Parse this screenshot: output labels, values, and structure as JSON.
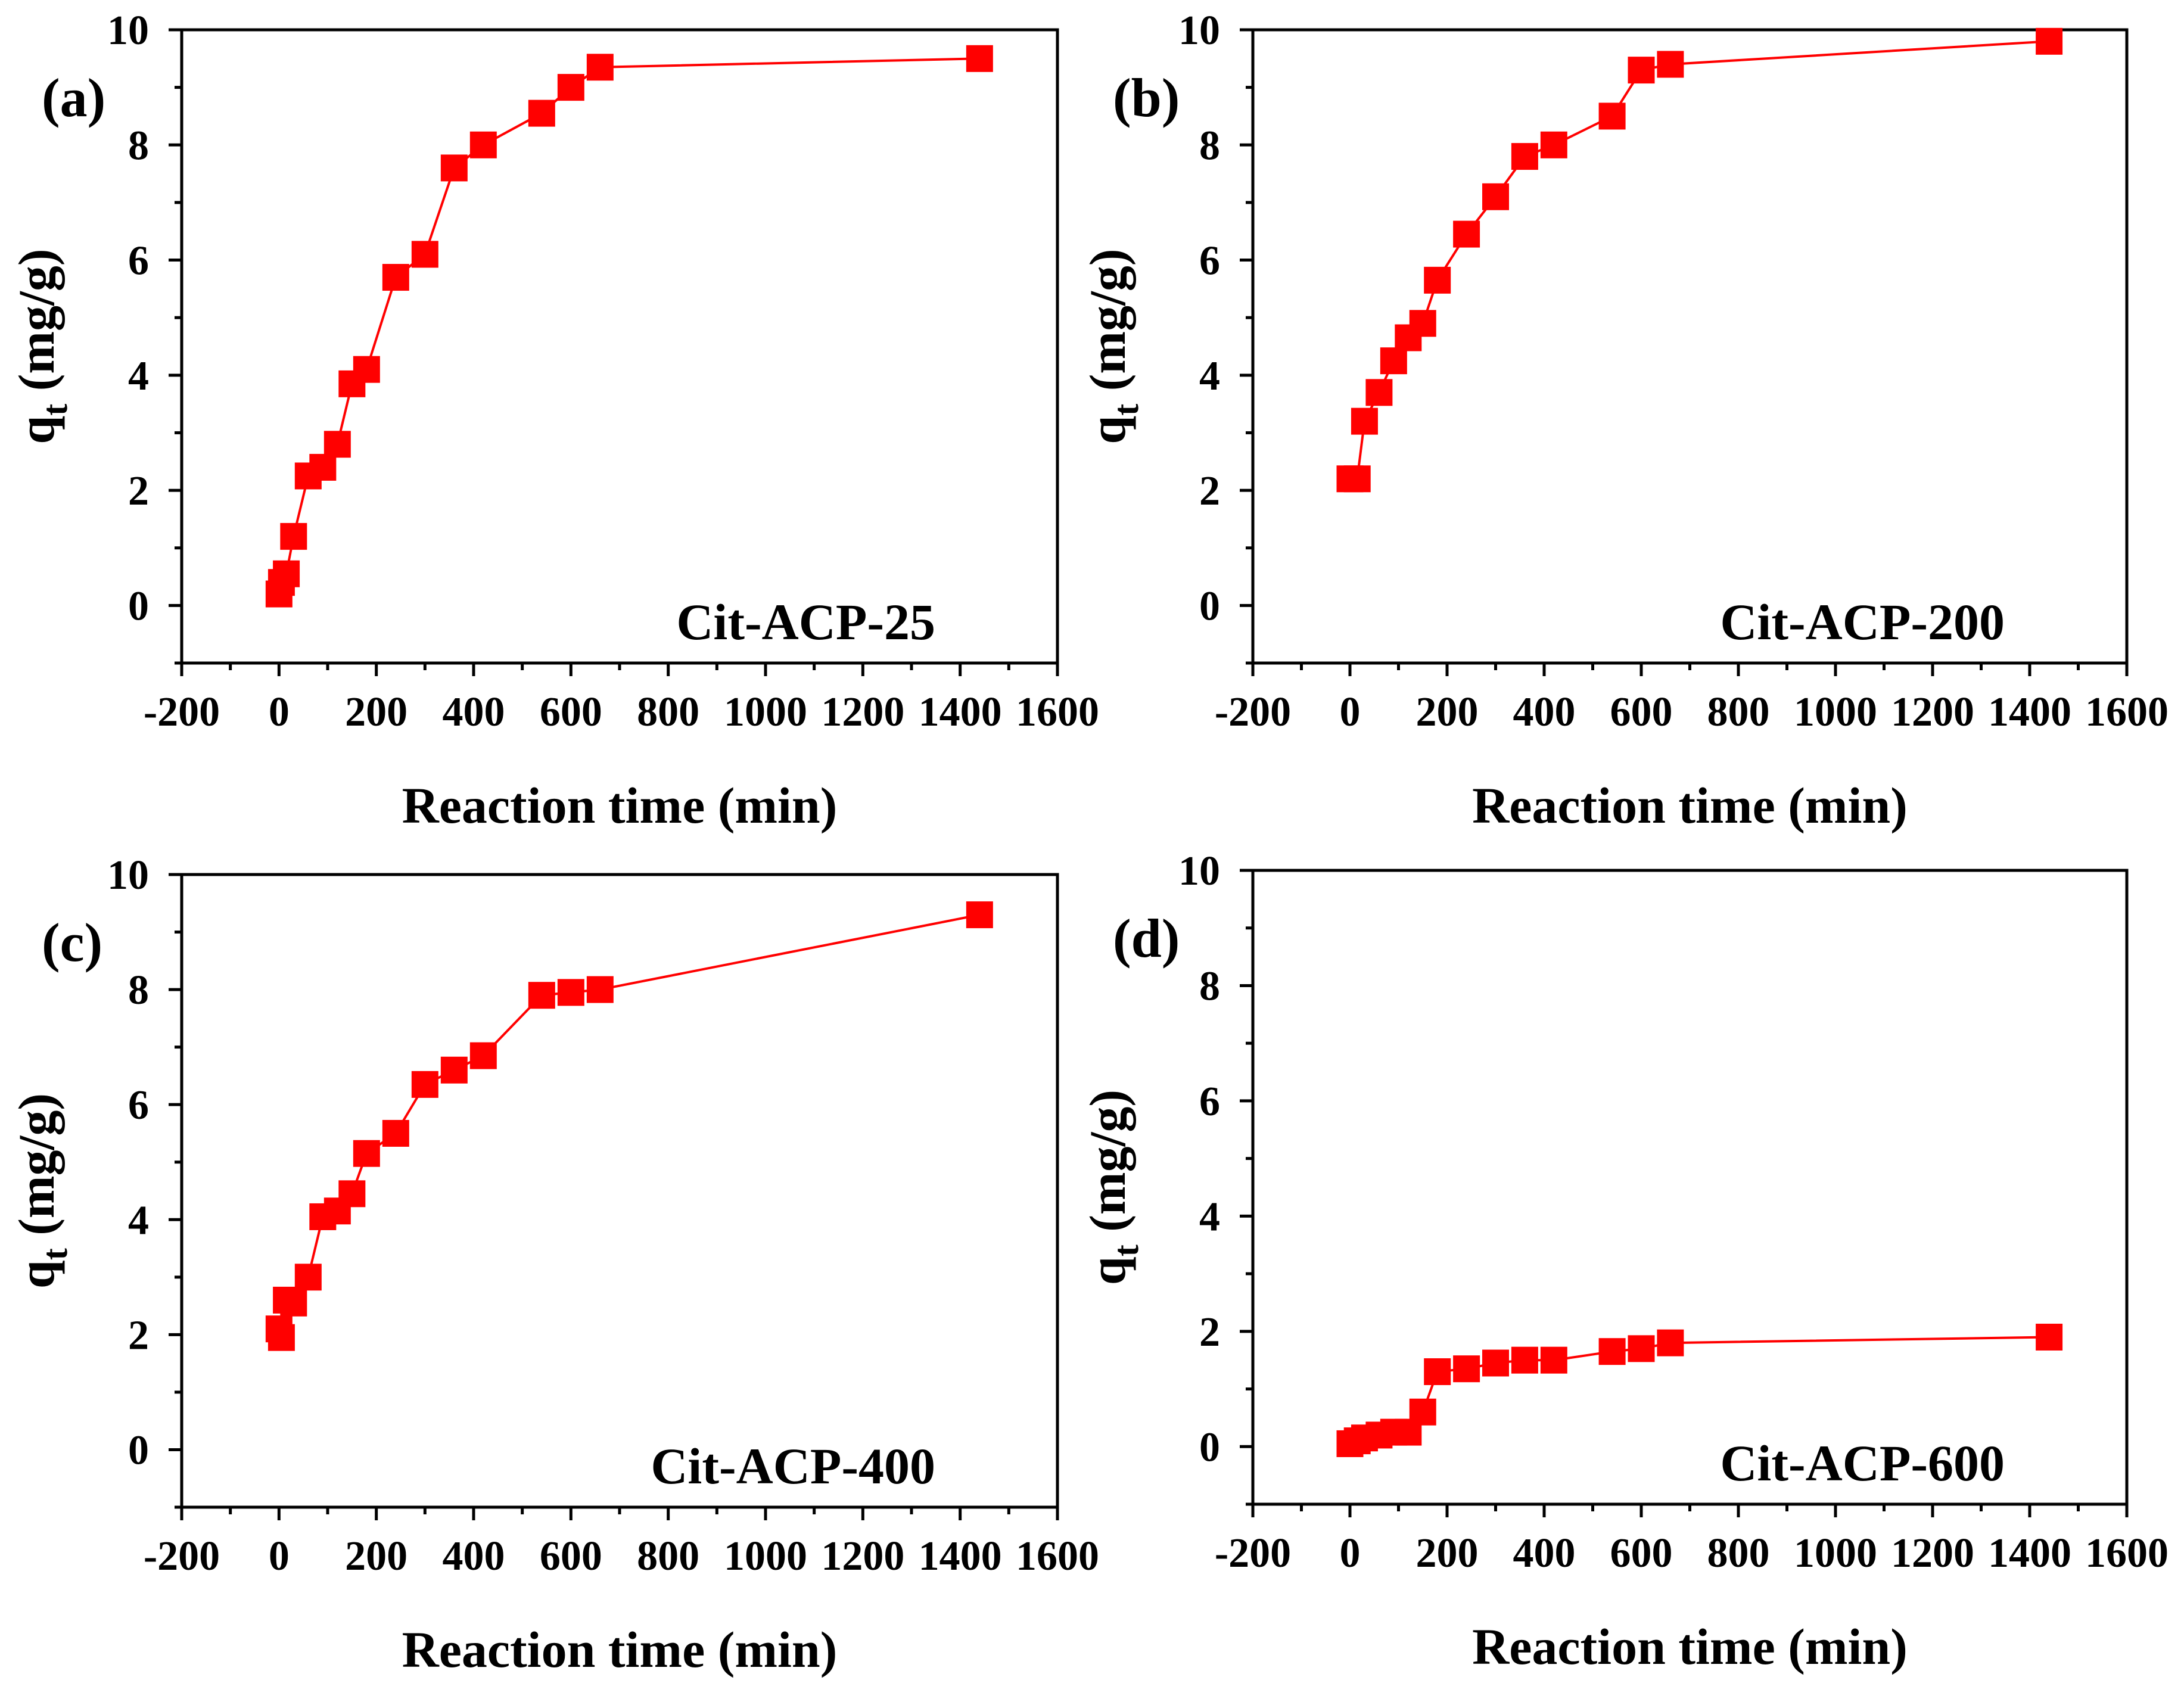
{
  "figure": {
    "x_axis_title": "Reaction time (min)",
    "y_axis_title_main": "q",
    "y_axis_title_sub": "t",
    "y_axis_title_unit": " (mg/g)"
  },
  "chart_data": [
    {
      "type": "line",
      "panel": "(a)",
      "sample": "Cit-ACP-25",
      "xlabel": "Reaction time (min)",
      "ylabel": "qt (mg/g)",
      "xlim": [
        -200,
        1600
      ],
      "ylim": [
        -1,
        10
      ],
      "xticks": [
        -200,
        0,
        200,
        400,
        600,
        800,
        1000,
        1200,
        1400,
        1600
      ],
      "yticks": [
        0,
        2,
        4,
        6,
        8,
        10
      ],
      "series": [
        {
          "name": "Cit-ACP-25",
          "color": "#ff0000",
          "marker": "square",
          "x": [
            0,
            5,
            15,
            30,
            60,
            90,
            120,
            150,
            180,
            240,
            300,
            360,
            420,
            540,
            600,
            660,
            1440
          ],
          "y": [
            0.2,
            0.4,
            0.55,
            1.2,
            2.25,
            2.4,
            2.8,
            3.85,
            4.1,
            5.7,
            6.1,
            7.6,
            8.0,
            8.55,
            9.0,
            9.35,
            9.5
          ]
        }
      ]
    },
    {
      "type": "line",
      "panel": "(b)",
      "sample": "Cit-ACP-200",
      "xlabel": "Reaction time (min)",
      "ylabel": "qt (mg/g)",
      "xlim": [
        -200,
        1600
      ],
      "ylim": [
        -1,
        10
      ],
      "xticks": [
        -200,
        0,
        200,
        400,
        600,
        800,
        1000,
        1200,
        1400,
        1600
      ],
      "yticks": [
        0,
        2,
        4,
        6,
        8,
        10
      ],
      "series": [
        {
          "name": "Cit-ACP-200",
          "color": "#ff0000",
          "marker": "square",
          "x": [
            0,
            15,
            30,
            60,
            90,
            120,
            150,
            180,
            240,
            300,
            360,
            420,
            540,
            600,
            660,
            1440
          ],
          "y": [
            2.2,
            2.2,
            3.2,
            3.7,
            4.25,
            4.65,
            4.9,
            5.65,
            6.45,
            7.1,
            7.8,
            8.0,
            8.5,
            9.3,
            9.4,
            9.8
          ]
        }
      ]
    },
    {
      "type": "line",
      "panel": "(c)",
      "sample": "Cit-ACP-400",
      "xlabel": "Reaction time (min)",
      "ylabel": "qt (mg/g)",
      "xlim": [
        -200,
        1600
      ],
      "ylim": [
        -1,
        10
      ],
      "xticks": [
        -200,
        0,
        200,
        400,
        600,
        800,
        1000,
        1200,
        1400,
        1600
      ],
      "yticks": [
        0,
        2,
        4,
        6,
        8,
        10
      ],
      "series": [
        {
          "name": "Cit-ACP-400",
          "color": "#ff0000",
          "marker": "square",
          "x": [
            0,
            5,
            15,
            30,
            60,
            90,
            120,
            150,
            180,
            240,
            300,
            360,
            420,
            540,
            600,
            660,
            1440
          ],
          "y": [
            2.1,
            1.95,
            2.6,
            2.55,
            3.0,
            4.05,
            4.15,
            4.45,
            5.15,
            5.5,
            6.35,
            6.6,
            6.85,
            7.9,
            7.95,
            8.0,
            9.3
          ]
        }
      ]
    },
    {
      "type": "line",
      "panel": "(d)",
      "sample": "Cit-ACP-600",
      "xlabel": "Reaction time (min)",
      "ylabel": "qt (mg/g)",
      "xlim": [
        -200,
        1600
      ],
      "ylim": [
        -1,
        10
      ],
      "xticks": [
        -200,
        0,
        200,
        400,
        600,
        800,
        1000,
        1200,
        1400,
        1600
      ],
      "yticks": [
        0,
        2,
        4,
        6,
        8,
        10
      ],
      "series": [
        {
          "name": "Cit-ACP-600",
          "color": "#ff0000",
          "marker": "square",
          "x": [
            0,
            15,
            30,
            60,
            90,
            120,
            150,
            180,
            240,
            300,
            360,
            420,
            540,
            600,
            660,
            1440
          ],
          "y": [
            0.05,
            0.1,
            0.15,
            0.2,
            0.25,
            0.25,
            0.6,
            1.3,
            1.35,
            1.45,
            1.5,
            1.5,
            1.65,
            1.7,
            1.8,
            1.9
          ]
        }
      ]
    }
  ]
}
